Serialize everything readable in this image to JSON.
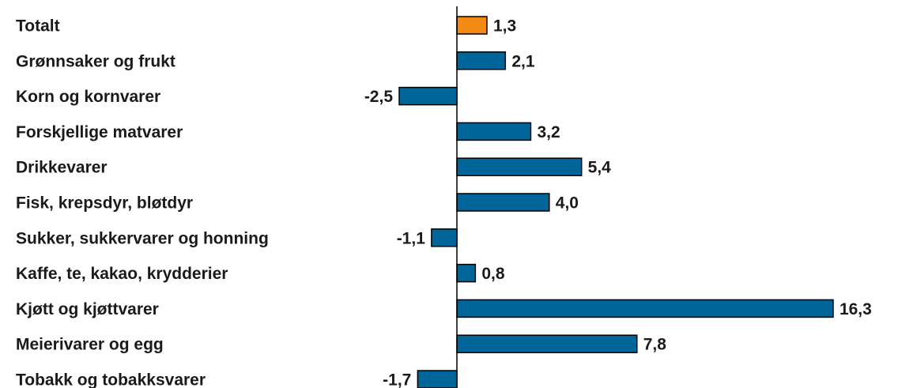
{
  "chart_data": {
    "type": "bar",
    "orientation": "horizontal",
    "title": "",
    "xlabel": "",
    "ylabel": "",
    "categories": [
      "Totalt",
      "Grønnsaker og frukt",
      "Korn og kornvarer",
      "Forskjellige matvarer",
      "Drikkevarer",
      "Fisk, krepsdyr, bløtdyr",
      "Sukker, sukkervarer og honning",
      "Kaffe, te, kakao, krydderier",
      "Kjøtt og kjøttvarer",
      "Meierivarer og egg",
      "Tobakk og tobakksvarer"
    ],
    "values": [
      1.3,
      2.1,
      -2.5,
      3.2,
      5.4,
      4.0,
      -1.1,
      0.8,
      16.3,
      7.8,
      -1.7
    ],
    "value_labels": [
      "1,3",
      "2,1",
      "-2,5",
      "3,2",
      "5,4",
      "4,0",
      "-1,1",
      "0,8",
      "16,3",
      "7,8",
      "-1,7"
    ],
    "highlight_index": 0,
    "colors": {
      "bar": "#006699",
      "highlight": "#f28a14",
      "outline": "#000000",
      "axis": "#000000"
    },
    "grid": false,
    "legend": "none"
  }
}
